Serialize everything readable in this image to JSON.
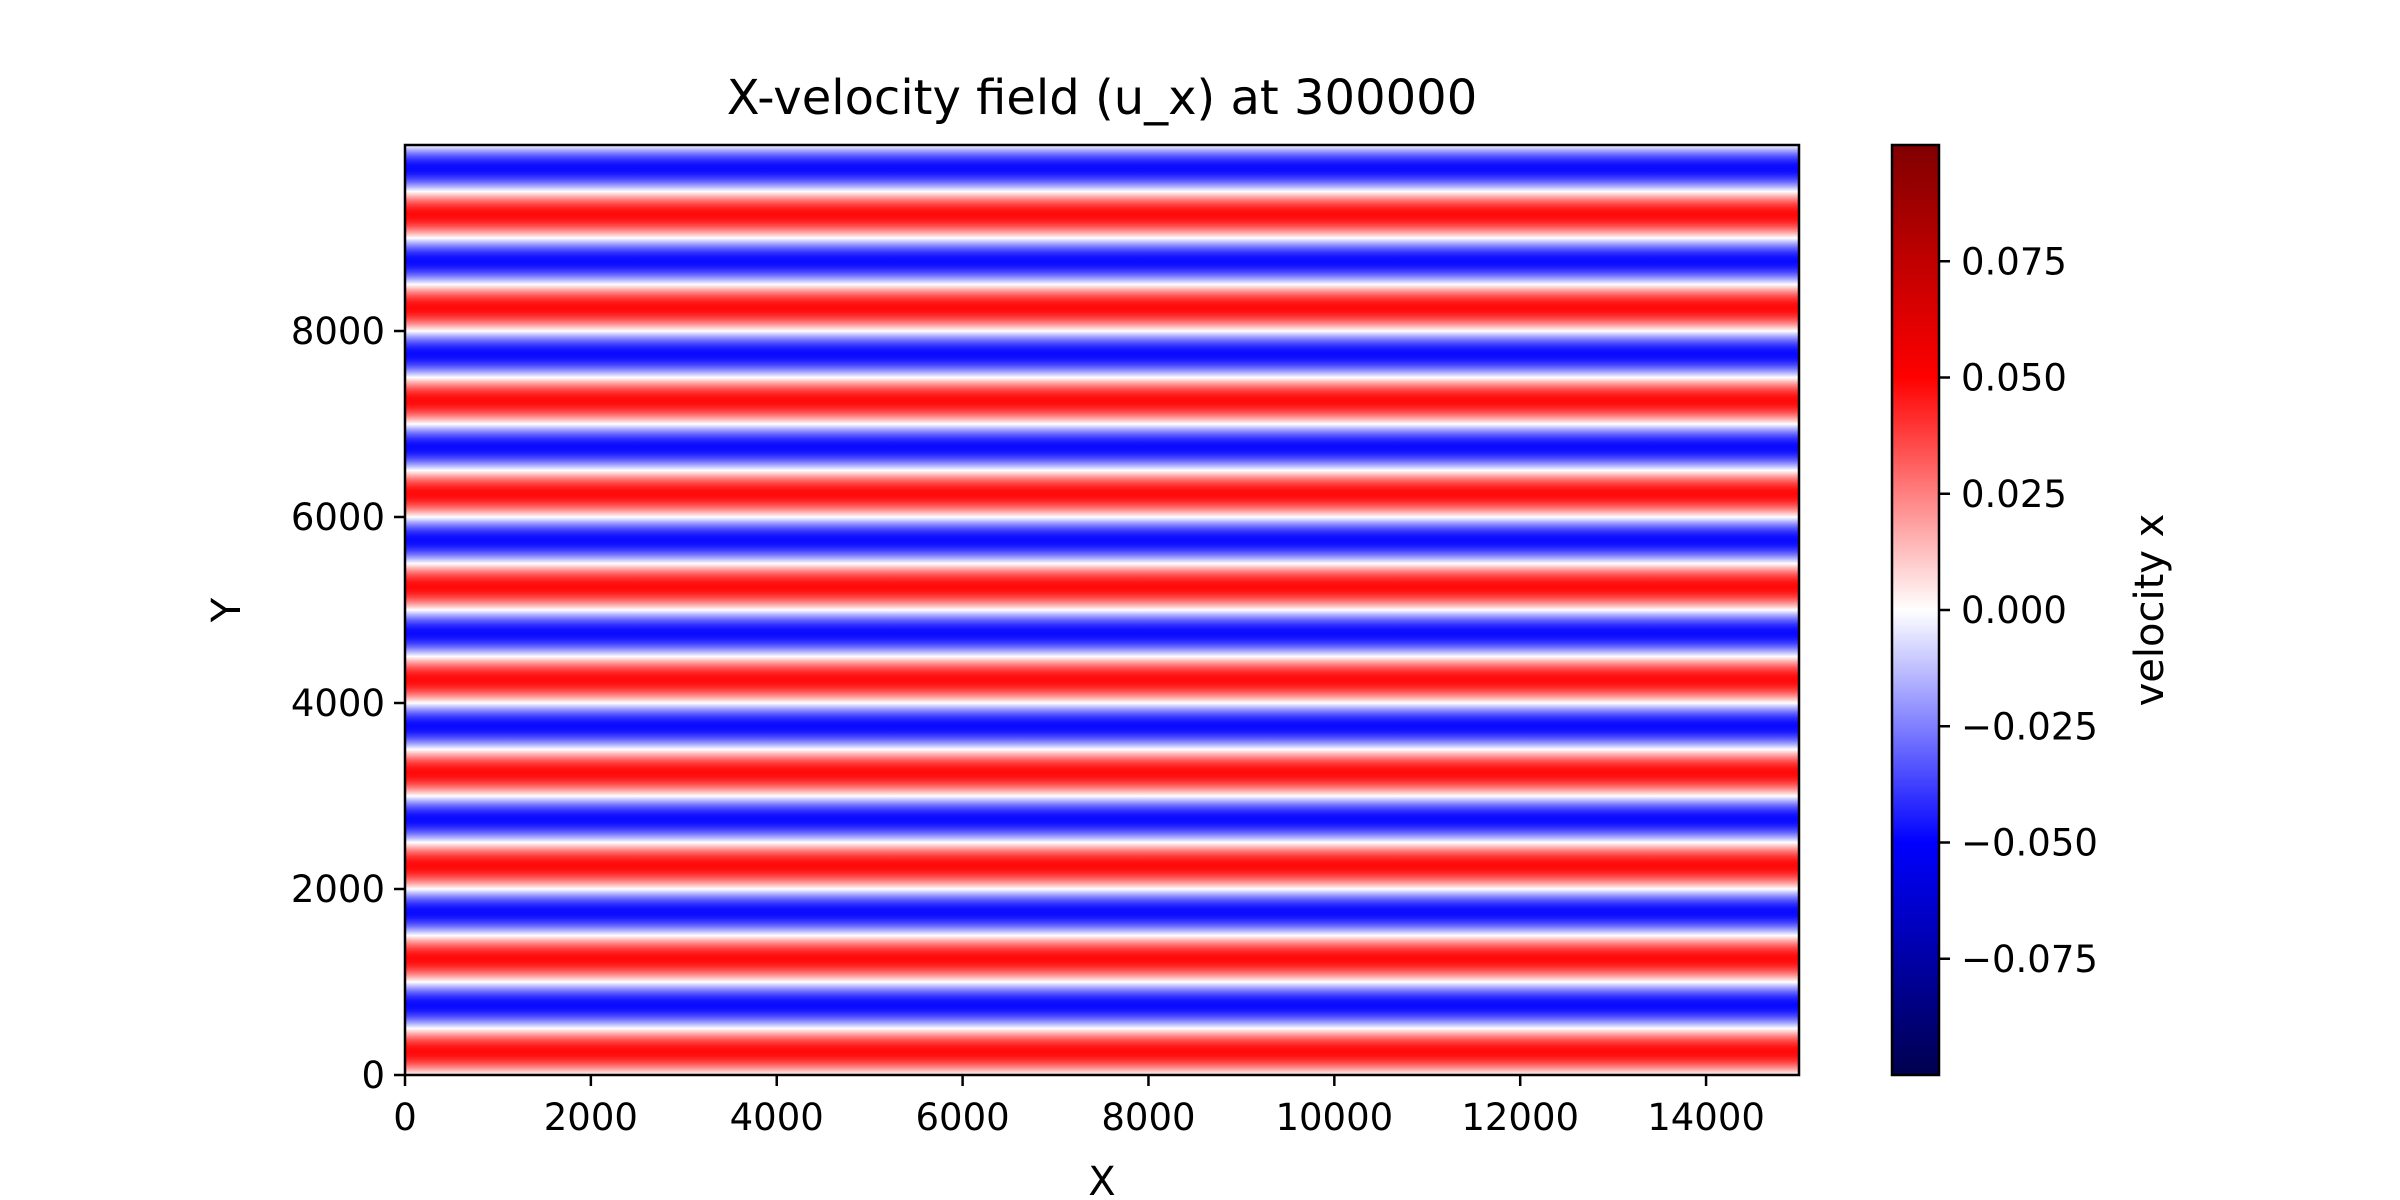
{
  "chart_data": {
    "type": "heatmap",
    "title": "X-velocity field (u_x) at 300000",
    "xlabel": "X",
    "ylabel": "Y",
    "xlim": [
      0,
      15000
    ],
    "ylim": [
      0,
      10000
    ],
    "xticks": [
      0,
      2000,
      4000,
      6000,
      8000,
      10000,
      12000,
      14000
    ],
    "yticks": [
      0,
      2000,
      4000,
      6000,
      8000
    ],
    "field": {
      "description_formula": "u_x(y) = amplitude * cos(2*pi*y/wavelength + phase), uniform in x",
      "amplitude": 0.048,
      "wavelength": 1000,
      "phase_start": "positive at y=0",
      "values_at_y": [
        {
          "y": 250,
          "u_x": 0.048
        },
        {
          "y": 750,
          "u_x": -0.048
        },
        {
          "y": 1250,
          "u_x": 0.048
        },
        {
          "y": 1750,
          "u_x": -0.048
        }
      ]
    },
    "colorbar": {
      "label": "velocity x",
      "colormap": "seismic",
      "vmin": -0.1,
      "vmax": 0.1,
      "ticks": [
        0.075,
        0.05,
        0.025,
        0.0,
        -0.025,
        -0.05,
        -0.075
      ],
      "tick_labels": [
        "0.075",
        "0.050",
        "0.025",
        "0.000",
        "−0.025",
        "−0.050",
        "−0.075"
      ]
    }
  }
}
